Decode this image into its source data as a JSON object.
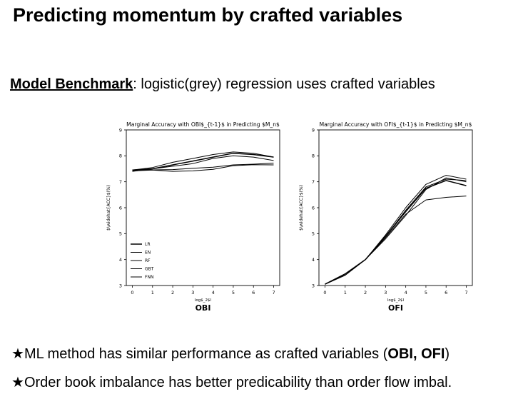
{
  "title": "Predicting momentum by crafted variables",
  "subtitle": {
    "lead": "Model Benchmark",
    "rest": ": logistic(grey) regression uses crafted variables"
  },
  "colors": {
    "line": "#000000",
    "text": "#000000",
    "background": "#ffffff"
  },
  "chart_data": [
    {
      "type": "line",
      "title": "Marginal Accuracy with OBI$_{t-1}$ in Predicting $M_n$",
      "xlabel": "log$_2$l",
      "ylabel": "$\\widehat{ACC}$(%)",
      "caption": "OBI",
      "x": [
        0,
        1,
        2,
        3,
        4,
        5,
        6,
        7
      ],
      "xticks": [
        "0",
        "1",
        "2",
        "3",
        "4",
        "5",
        "6",
        "7"
      ],
      "yticks": [
        "3",
        "4",
        "5",
        "6",
        "7",
        "8",
        "9"
      ],
      "xlim": [
        -0.3,
        7.3
      ],
      "ylim": [
        3,
        9
      ],
      "legend_position": "lower-left",
      "series": [
        {
          "name": "LR",
          "values": [
            7.45,
            7.5,
            7.65,
            7.8,
            7.95,
            8.1,
            8.05,
            7.95
          ]
        },
        {
          "name": "EN",
          "values": [
            7.45,
            7.55,
            7.75,
            7.9,
            8.05,
            8.15,
            8.1,
            7.95
          ]
        },
        {
          "name": "RF",
          "values": [
            7.42,
            7.45,
            7.4,
            7.42,
            7.48,
            7.62,
            7.66,
            7.65
          ]
        },
        {
          "name": "GBT",
          "values": [
            7.45,
            7.46,
            7.47,
            7.52,
            7.56,
            7.65,
            7.68,
            7.72
          ]
        },
        {
          "name": "FNN",
          "values": [
            7.4,
            7.5,
            7.6,
            7.7,
            7.9,
            8.0,
            7.95,
            7.82
          ]
        }
      ]
    },
    {
      "type": "line",
      "title": "Marginal Accuracy with OFI$_{t-1}$ in Predicting $M_n$",
      "xlabel": "log$_2$l",
      "ylabel": "$\\widehat{ACC}$(%)",
      "caption": "OFI",
      "x": [
        0,
        1,
        2,
        3,
        4,
        5,
        6,
        7
      ],
      "xticks": [
        "0",
        "1",
        "2",
        "3",
        "4",
        "5",
        "6",
        "7"
      ],
      "yticks": [
        "3",
        "4",
        "5",
        "6",
        "7",
        "8",
        "9"
      ],
      "xlim": [
        -0.3,
        7.3
      ],
      "ylim": [
        3,
        9
      ],
      "series": [
        {
          "values": [
            3.05,
            3.45,
            4.0,
            4.9,
            5.85,
            6.75,
            7.05,
            6.85
          ]
        },
        {
          "values": [
            3.05,
            3.4,
            4.0,
            4.95,
            6.0,
            6.9,
            7.25,
            7.1
          ]
        },
        {
          "values": [
            3.05,
            3.4,
            4.0,
            4.85,
            5.75,
            6.3,
            6.4,
            6.45
          ]
        },
        {
          "values": [
            3.05,
            3.4,
            4.0,
            4.9,
            5.9,
            6.8,
            7.1,
            7.05
          ]
        },
        {
          "values": [
            3.05,
            3.45,
            4.0,
            4.8,
            5.7,
            6.7,
            7.15,
            7.0
          ]
        }
      ]
    }
  ],
  "bullets": [
    {
      "star": "★",
      "before": "ML method has similar performance as crafted variables (",
      "bold": "OBI, OFI",
      "after": ")"
    },
    {
      "star": "★",
      "text": "Order book imbalance has better predicability than order flow imbal."
    }
  ]
}
